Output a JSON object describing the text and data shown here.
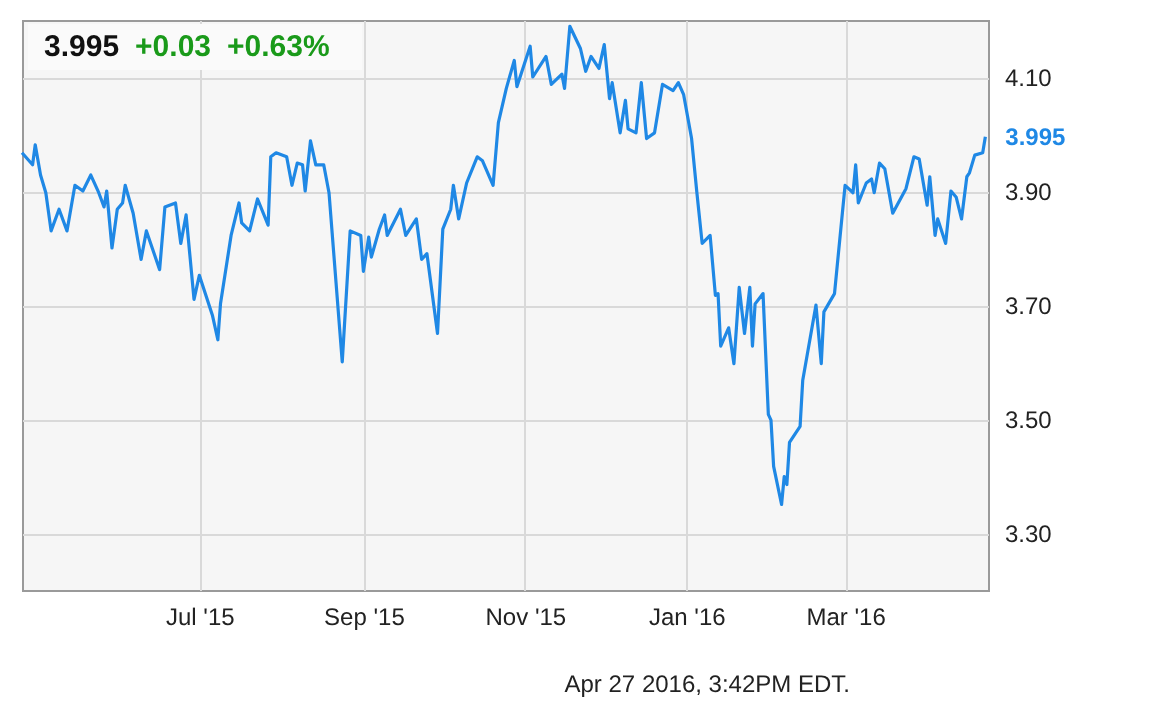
{
  "chart_data": {
    "type": "line",
    "title": "3.995",
    "annotations": [
      "+0.03",
      "+0.63%",
      {
        "text": "3.995",
        "x": "2016-04-23",
        "y": 3.995
      },
      "Apr 27 2016, 3:42PM EDT."
    ],
    "x": [
      "2015-04-25",
      "2015-04-29",
      "2015-04-30",
      "2015-05-02",
      "2015-05-04",
      "2015-05-06",
      "2015-05-09",
      "2015-05-12",
      "2015-05-15",
      "2015-05-18",
      "2015-05-21",
      "2015-05-24",
      "2015-05-26",
      "2015-05-27",
      "2015-05-29",
      "2015-05-31",
      "2015-06-02",
      "2015-06-03",
      "2015-06-06",
      "2015-06-09",
      "2015-06-11",
      "2015-06-16",
      "2015-06-18",
      "2015-06-22",
      "2015-06-24",
      "2015-06-26",
      "2015-06-29",
      "2015-07-01",
      "2015-07-06",
      "2015-07-08",
      "2015-07-09",
      "2015-07-13",
      "2015-07-16",
      "2015-07-17",
      "2015-07-20",
      "2015-07-23",
      "2015-07-27",
      "2015-07-28",
      "2015-07-30",
      "2015-08-03",
      "2015-08-05",
      "2015-08-07",
      "2015-08-09",
      "2015-08-10",
      "2015-08-12",
      "2015-08-14",
      "2015-08-17",
      "2015-08-19",
      "2015-08-24",
      "2015-08-27",
      "2015-08-31",
      "2015-09-01",
      "2015-09-03",
      "2015-09-04",
      "2015-09-07",
      "2015-09-09",
      "2015-09-10",
      "2015-09-15",
      "2015-09-17",
      "2015-09-21",
      "2015-09-23",
      "2015-09-25",
      "2015-09-29",
      "2015-10-01",
      "2015-10-04",
      "2015-10-05",
      "2015-10-07",
      "2015-10-10",
      "2015-10-14",
      "2015-10-16",
      "2015-10-20",
      "2015-10-22",
      "2015-10-25",
      "2015-10-28",
      "2015-10-29",
      "2015-11-03",
      "2015-11-04",
      "2015-11-09",
      "2015-11-11",
      "2015-11-15",
      "2015-11-16",
      "2015-11-18",
      "2015-11-22",
      "2015-11-24",
      "2015-11-26",
      "2015-11-29",
      "2015-12-01",
      "2015-12-03",
      "2015-12-04",
      "2015-12-07",
      "2015-12-09",
      "2015-12-10",
      "2015-12-13",
      "2015-12-15",
      "2015-12-17",
      "2015-12-20",
      "2015-12-23",
      "2015-12-27",
      "2015-12-29",
      "2015-12-31",
      "2016-01-03",
      "2016-01-05",
      "2016-01-07",
      "2016-01-10",
      "2016-01-12",
      "2016-01-13",
      "2016-01-14",
      "2016-01-17",
      "2016-01-19",
      "2016-01-21",
      "2016-01-23",
      "2016-01-25",
      "2016-01-26",
      "2016-01-27",
      "2016-01-30",
      "2016-02-01",
      "2016-02-02",
      "2016-02-03",
      "2016-02-06",
      "2016-02-07",
      "2016-02-08",
      "2016-02-09",
      "2016-02-13",
      "2016-02-14",
      "2016-02-19",
      "2016-02-21",
      "2016-02-22",
      "2016-02-26",
      "2016-03-01",
      "2016-03-04",
      "2016-03-05",
      "2016-03-06",
      "2016-03-09",
      "2016-03-11",
      "2016-03-12",
      "2016-03-14",
      "2016-03-16",
      "2016-03-19",
      "2016-03-24",
      "2016-03-27",
      "2016-03-29",
      "2016-04-01",
      "2016-04-02",
      "2016-04-04",
      "2016-04-05",
      "2016-04-08",
      "2016-04-10",
      "2016-04-12",
      "2016-04-14",
      "2016-04-16",
      "2016-04-17",
      "2016-04-19",
      "2016-04-22",
      "2016-04-23"
    ],
    "series": [
      {
        "color": "#1f88e5",
        "values": [
          3.967,
          3.946,
          3.981,
          3.928,
          3.897,
          3.83,
          3.868,
          3.83,
          3.91,
          3.9,
          3.928,
          3.897,
          3.872,
          3.9,
          3.8,
          3.868,
          3.879,
          3.91,
          3.861,
          3.78,
          3.83,
          3.762,
          3.872,
          3.879,
          3.808,
          3.858,
          3.71,
          3.752,
          3.681,
          3.639,
          3.702,
          3.822,
          3.879,
          3.844,
          3.83,
          3.886,
          3.84,
          3.96,
          3.967,
          3.96,
          3.91,
          3.949,
          3.946,
          3.9,
          3.988,
          3.946,
          3.946,
          3.897,
          3.6,
          3.83,
          3.822,
          3.759,
          3.819,
          3.784,
          3.833,
          3.858,
          3.822,
          3.868,
          3.822,
          3.851,
          3.78,
          3.79,
          3.65,
          3.833,
          3.868,
          3.91,
          3.851,
          3.914,
          3.96,
          3.953,
          3.91,
          4.02,
          4.08,
          4.129,
          4.083,
          4.154,
          4.1,
          4.136,
          4.087,
          4.105,
          4.08,
          4.189,
          4.15,
          4.11,
          4.136,
          4.115,
          4.157,
          4.062,
          4.09,
          4.002,
          4.059,
          4.009,
          4.002,
          4.09,
          3.992,
          4.002,
          4.087,
          4.076,
          4.09,
          4.069,
          3.992,
          3.897,
          3.808,
          3.822,
          3.717,
          3.72,
          3.628,
          3.66,
          3.597,
          3.731,
          3.65,
          3.731,
          3.628,
          3.702,
          3.72,
          3.508,
          3.498,
          3.417,
          3.35,
          3.399,
          3.385,
          3.459,
          3.487,
          3.568,
          3.7,
          3.597,
          3.688,
          3.72,
          3.91,
          3.897,
          3.946,
          3.879,
          3.914,
          3.921,
          3.897,
          3.949,
          3.939,
          3.861,
          3.904,
          3.96,
          3.956,
          3.875,
          3.925,
          3.822,
          3.851,
          3.808,
          3.9,
          3.889,
          3.851,
          3.925,
          3.932,
          3.963,
          3.967,
          3.995
        ]
      }
    ],
    "xlim": [
      "2015-04-25",
      "2016-04-24"
    ],
    "xticks": [
      {
        "value": "2015-07-01",
        "label": "Jul '15"
      },
      {
        "value": "2015-09-01",
        "label": "Sep '15"
      },
      {
        "value": "2015-11-01",
        "label": "Nov '15"
      },
      {
        "value": "2016-01-01",
        "label": "Jan '16"
      },
      {
        "value": "2016-03-01",
        "label": "Mar '16"
      }
    ],
    "ylim": [
      3.2,
      4.2
    ],
    "yticks": [
      {
        "value": 3.3,
        "label": "3.30"
      },
      {
        "value": 3.5,
        "label": "3.50"
      },
      {
        "value": 3.7,
        "label": "3.70"
      },
      {
        "value": 3.9,
        "label": "3.90"
      },
      {
        "value": 4.1,
        "label": "4.10"
      }
    ],
    "grid": true
  }
}
